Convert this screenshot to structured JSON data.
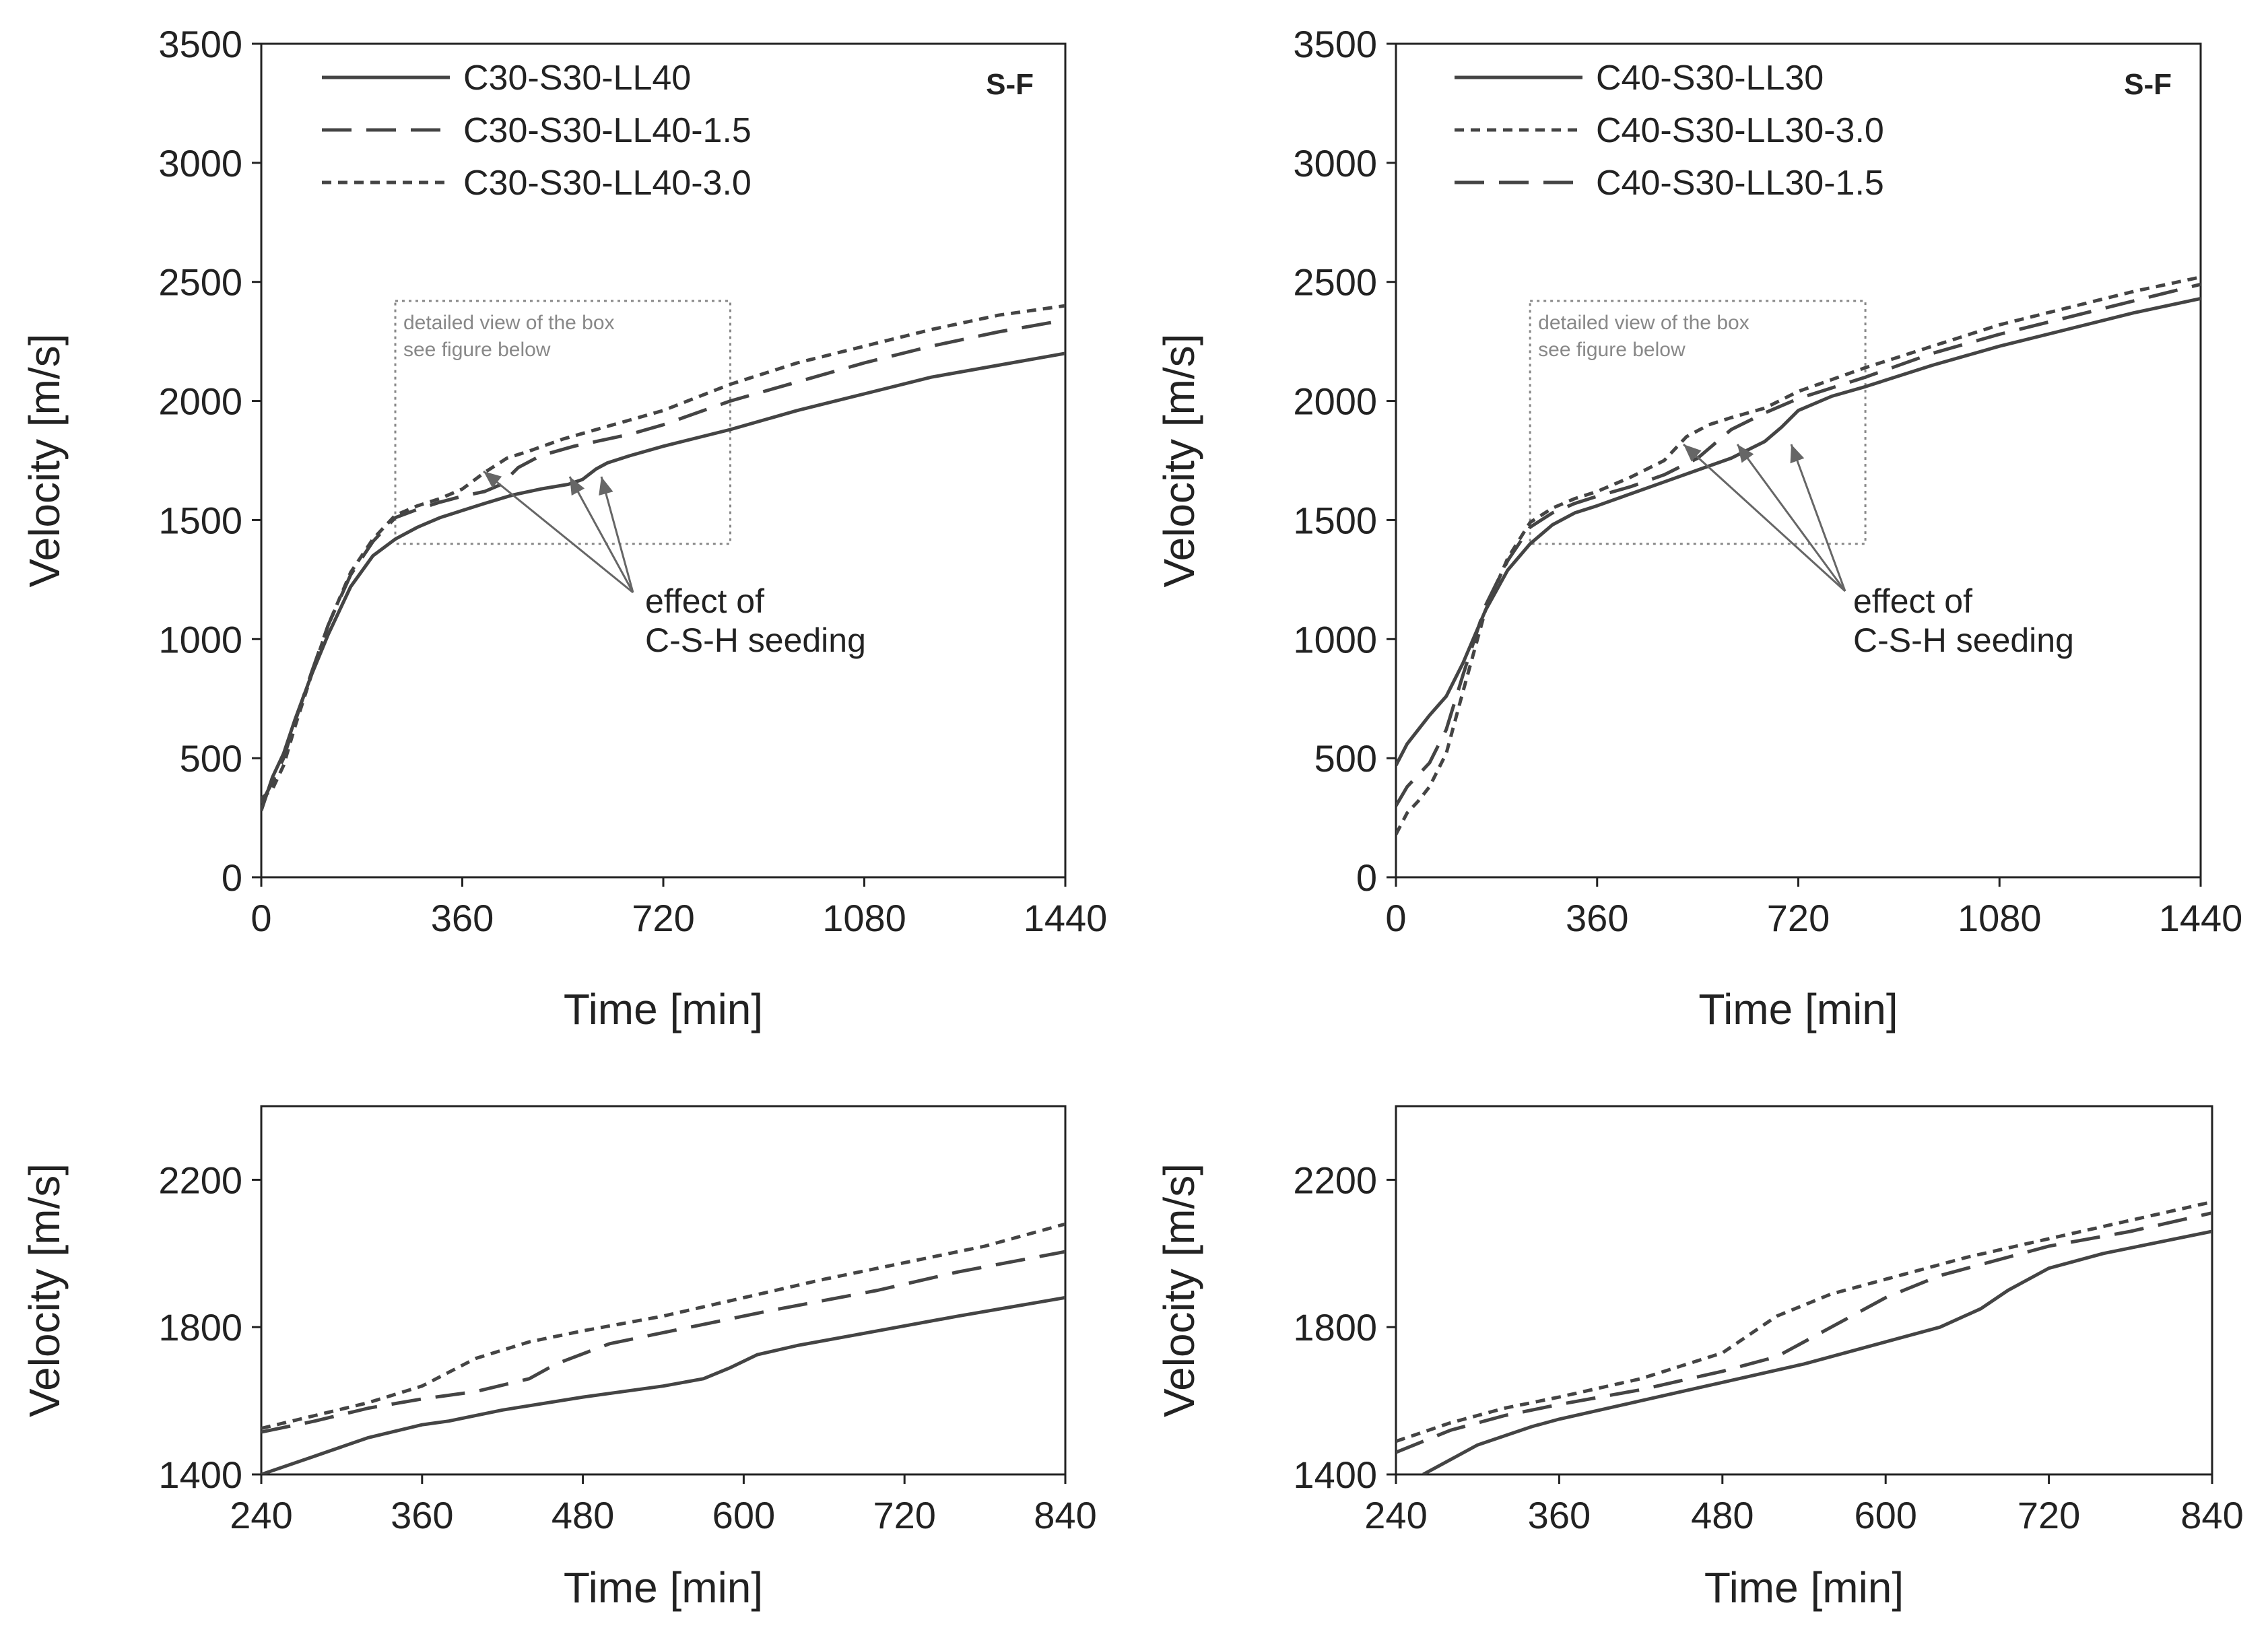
{
  "colors": {
    "line": "#444444",
    "frame": "#222222",
    "note": "#888888",
    "arrow": "#666666"
  },
  "annotation_text": {
    "box_note_1": "detailed view of the box",
    "box_note_2": "see  figure below",
    "effect_1": "effect of",
    "effect_2": "C-S-H seeding"
  },
  "chart_data": [
    {
      "type": "line",
      "xlabel": "Time [min]",
      "ylabel": "Velocity [m/s]",
      "xlim": [
        0,
        1440
      ],
      "ylim": [
        0,
        3500
      ],
      "xticks": [
        0,
        360,
        720,
        1080,
        1440
      ],
      "yticks": [
        0,
        500,
        1000,
        1500,
        2000,
        2500,
        3000,
        3500
      ],
      "label": "S-F",
      "legend_position": "top-left",
      "detail_box": {
        "x": [
          240,
          840
        ],
        "y": [
          1400,
          2420
        ]
      },
      "series": [
        {
          "name": "C30-S30-LL40",
          "style": "solid",
          "points": [
            [
              0,
              280
            ],
            [
              20,
              420
            ],
            [
              40,
              520
            ],
            [
              60,
              660
            ],
            [
              90,
              850
            ],
            [
              120,
              1020
            ],
            [
              160,
              1220
            ],
            [
              200,
              1350
            ],
            [
              240,
              1420
            ],
            [
              280,
              1470
            ],
            [
              320,
              1510
            ],
            [
              360,
              1540
            ],
            [
              400,
              1570
            ],
            [
              450,
              1605
            ],
            [
              500,
              1630
            ],
            [
              550,
              1650
            ],
            [
              575,
              1670
            ],
            [
              600,
              1715
            ],
            [
              620,
              1740
            ],
            [
              660,
              1770
            ],
            [
              720,
              1810
            ],
            [
              840,
              1880
            ],
            [
              960,
              1960
            ],
            [
              1080,
              2030
            ],
            [
              1200,
              2100
            ],
            [
              1320,
              2150
            ],
            [
              1440,
              2200
            ]
          ]
        },
        {
          "name": "C30-S30-LL40-1.5",
          "style": "long-dash",
          "points": [
            [
              0,
              310
            ],
            [
              20,
              400
            ],
            [
              40,
              500
            ],
            [
              60,
              650
            ],
            [
              90,
              860
            ],
            [
              120,
              1060
            ],
            [
              160,
              1270
            ],
            [
              200,
              1410
            ],
            [
              240,
              1510
            ],
            [
              280,
              1545
            ],
            [
              320,
              1575
            ],
            [
              360,
              1600
            ],
            [
              400,
              1620
            ],
            [
              430,
              1650
            ],
            [
              460,
              1720
            ],
            [
              500,
              1770
            ],
            [
              560,
              1810
            ],
            [
              600,
              1830
            ],
            [
              660,
              1860
            ],
            [
              720,
              1900
            ],
            [
              840,
              2000
            ],
            [
              960,
              2080
            ],
            [
              1080,
              2160
            ],
            [
              1200,
              2230
            ],
            [
              1320,
              2290
            ],
            [
              1440,
              2340
            ]
          ]
        },
        {
          "name": "C30-S30-LL40-3.0",
          "style": "short-dash",
          "points": [
            [
              0,
              330
            ],
            [
              20,
              370
            ],
            [
              40,
              470
            ],
            [
              60,
              630
            ],
            [
              90,
              850
            ],
            [
              120,
              1060
            ],
            [
              160,
              1280
            ],
            [
              200,
              1420
            ],
            [
              240,
              1520
            ],
            [
              280,
              1560
            ],
            [
              320,
              1590
            ],
            [
              360,
              1630
            ],
            [
              400,
              1700
            ],
            [
              440,
              1760
            ],
            [
              480,
              1790
            ],
            [
              540,
              1840
            ],
            [
              600,
              1880
            ],
            [
              660,
              1920
            ],
            [
              720,
              1960
            ],
            [
              840,
              2070
            ],
            [
              960,
              2160
            ],
            [
              1080,
              2230
            ],
            [
              1200,
              2300
            ],
            [
              1320,
              2360
            ],
            [
              1440,
              2400
            ]
          ]
        }
      ]
    },
    {
      "type": "line",
      "xlabel": "Time [min]",
      "ylabel": "Velocity [m/s]",
      "xlim": [
        0,
        1440
      ],
      "ylim": [
        0,
        3500
      ],
      "xticks": [
        0,
        360,
        720,
        1080,
        1440
      ],
      "yticks": [
        0,
        500,
        1000,
        1500,
        2000,
        2500,
        3000,
        3500
      ],
      "label": "S-F",
      "legend_position": "top-left",
      "detail_box": {
        "x": [
          240,
          840
        ],
        "y": [
          1400,
          2420
        ]
      },
      "series": [
        {
          "name": "C40-S30-LL30",
          "style": "solid",
          "points": [
            [
              0,
              470
            ],
            [
              20,
              560
            ],
            [
              40,
              620
            ],
            [
              60,
              680
            ],
            [
              90,
              760
            ],
            [
              120,
              900
            ],
            [
              160,
              1120
            ],
            [
              200,
              1290
            ],
            [
              240,
              1400
            ],
            [
              280,
              1480
            ],
            [
              320,
              1530
            ],
            [
              360,
              1560
            ],
            [
              420,
              1610
            ],
            [
              480,
              1660
            ],
            [
              540,
              1710
            ],
            [
              600,
              1760
            ],
            [
              660,
              1830
            ],
            [
              690,
              1890
            ],
            [
              720,
              1960
            ],
            [
              780,
              2020
            ],
            [
              840,
              2060
            ],
            [
              960,
              2150
            ],
            [
              1080,
              2230
            ],
            [
              1200,
              2300
            ],
            [
              1320,
              2370
            ],
            [
              1440,
              2430
            ]
          ]
        },
        {
          "name": "C40-S30-LL30-3.0",
          "style": "short-dash",
          "points": [
            [
              0,
              180
            ],
            [
              20,
              270
            ],
            [
              40,
              320
            ],
            [
              60,
              380
            ],
            [
              90,
              520
            ],
            [
              120,
              780
            ],
            [
              160,
              1120
            ],
            [
              200,
              1340
            ],
            [
              240,
              1490
            ],
            [
              280,
              1550
            ],
            [
              320,
              1590
            ],
            [
              360,
              1620
            ],
            [
              420,
              1680
            ],
            [
              480,
              1750
            ],
            [
              520,
              1850
            ],
            [
              560,
              1900
            ],
            [
              600,
              1930
            ],
            [
              660,
              1970
            ],
            [
              720,
              2040
            ],
            [
              840,
              2140
            ],
            [
              960,
              2230
            ],
            [
              1080,
              2320
            ],
            [
              1200,
              2390
            ],
            [
              1320,
              2460
            ],
            [
              1440,
              2520
            ]
          ]
        },
        {
          "name": "C40-S30-LL30-1.5",
          "style": "long-dash",
          "points": [
            [
              0,
              300
            ],
            [
              20,
              380
            ],
            [
              40,
              430
            ],
            [
              60,
              480
            ],
            [
              90,
              620
            ],
            [
              120,
              850
            ],
            [
              160,
              1140
            ],
            [
              200,
              1330
            ],
            [
              240,
              1470
            ],
            [
              280,
              1530
            ],
            [
              320,
              1570
            ],
            [
              360,
              1600
            ],
            [
              420,
              1640
            ],
            [
              480,
              1690
            ],
            [
              540,
              1760
            ],
            [
              600,
              1880
            ],
            [
              660,
              1950
            ],
            [
              720,
              2010
            ],
            [
              840,
              2100
            ],
            [
              960,
              2200
            ],
            [
              1080,
              2280
            ],
            [
              1200,
              2350
            ],
            [
              1320,
              2420
            ],
            [
              1440,
              2490
            ]
          ]
        }
      ]
    },
    {
      "type": "line",
      "xlabel": "Time [min]",
      "ylabel": "Velocity [m/s]",
      "xlim": [
        240,
        840
      ],
      "ylim": [
        1400,
        2400
      ],
      "xticks": [
        240,
        360,
        480,
        600,
        720,
        840
      ],
      "yticks": [
        1400,
        1800,
        2200
      ],
      "series": [
        {
          "name": "",
          "style": "solid",
          "points": [
            [
              240,
              1400
            ],
            [
              280,
              1450
            ],
            [
              320,
              1500
            ],
            [
              360,
              1535
            ],
            [
              380,
              1545
            ],
            [
              420,
              1575
            ],
            [
              480,
              1610
            ],
            [
              540,
              1640
            ],
            [
              570,
              1660
            ],
            [
              590,
              1690
            ],
            [
              610,
              1725
            ],
            [
              640,
              1750
            ],
            [
              700,
              1790
            ],
            [
              760,
              1830
            ],
            [
              840,
              1880
            ]
          ]
        },
        {
          "name": "",
          "style": "long-dash",
          "points": [
            [
              240,
              1515
            ],
            [
              280,
              1545
            ],
            [
              320,
              1580
            ],
            [
              360,
              1605
            ],
            [
              400,
              1625
            ],
            [
              440,
              1660
            ],
            [
              460,
              1700
            ],
            [
              500,
              1755
            ],
            [
              560,
              1800
            ],
            [
              620,
              1845
            ],
            [
              700,
              1900
            ],
            [
              760,
              1950
            ],
            [
              840,
              2005
            ]
          ]
        },
        {
          "name": "",
          "style": "short-dash",
          "points": [
            [
              240,
              1525
            ],
            [
              280,
              1560
            ],
            [
              320,
              1595
            ],
            [
              360,
              1640
            ],
            [
              400,
              1715
            ],
            [
              440,
              1760
            ],
            [
              480,
              1790
            ],
            [
              540,
              1830
            ],
            [
              600,
              1880
            ],
            [
              660,
              1930
            ],
            [
              720,
              1975
            ],
            [
              780,
              2020
            ],
            [
              840,
              2080
            ]
          ]
        }
      ]
    },
    {
      "type": "line",
      "xlabel": "Time [min]",
      "ylabel": "Velocity [m/s]",
      "xlim": [
        240,
        840
      ],
      "ylim": [
        1400,
        2400
      ],
      "xticks": [
        240,
        360,
        480,
        600,
        720,
        840
      ],
      "yticks": [
        1400,
        1800,
        2200
      ],
      "series": [
        {
          "name": "",
          "style": "solid",
          "points": [
            [
              260,
              1400
            ],
            [
              300,
              1480
            ],
            [
              340,
              1530
            ],
            [
              360,
              1550
            ],
            [
              420,
              1600
            ],
            [
              480,
              1650
            ],
            [
              540,
              1700
            ],
            [
              600,
              1760
            ],
            [
              640,
              1800
            ],
            [
              670,
              1850
            ],
            [
              690,
              1900
            ],
            [
              720,
              1960
            ],
            [
              760,
              2000
            ],
            [
              840,
              2060
            ]
          ]
        },
        {
          "name": "",
          "style": "long-dash",
          "points": [
            [
              240,
              1460
            ],
            [
              280,
              1520
            ],
            [
              320,
              1560
            ],
            [
              360,
              1590
            ],
            [
              420,
              1630
            ],
            [
              480,
              1680
            ],
            [
              520,
              1720
            ],
            [
              560,
              1800
            ],
            [
              600,
              1880
            ],
            [
              640,
              1940
            ],
            [
              720,
              2020
            ],
            [
              780,
              2060
            ],
            [
              840,
              2110
            ]
          ]
        },
        {
          "name": "",
          "style": "short-dash",
          "points": [
            [
              240,
              1490
            ],
            [
              280,
              1540
            ],
            [
              320,
              1580
            ],
            [
              360,
              1610
            ],
            [
              420,
              1660
            ],
            [
              480,
              1730
            ],
            [
              520,
              1830
            ],
            [
              560,
              1890
            ],
            [
              600,
              1930
            ],
            [
              660,
              1990
            ],
            [
              720,
              2040
            ],
            [
              780,
              2090
            ],
            [
              840,
              2140
            ]
          ]
        }
      ]
    }
  ]
}
